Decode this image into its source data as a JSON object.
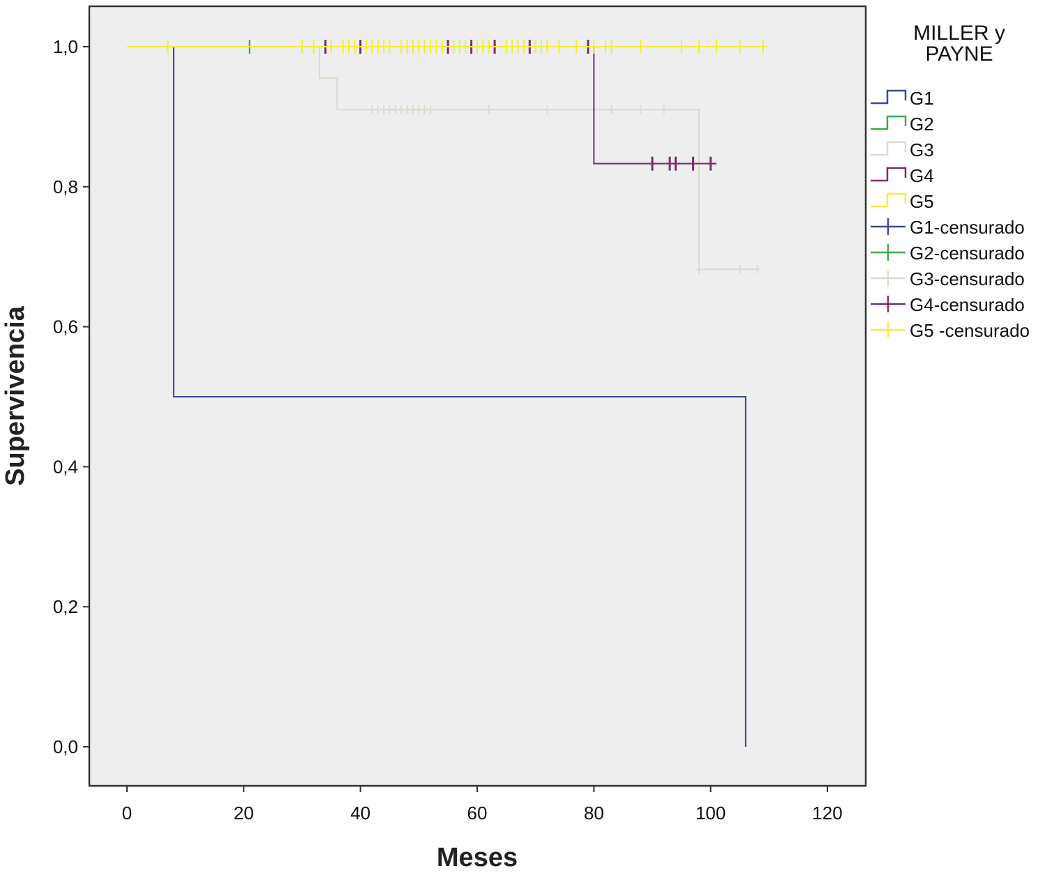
{
  "chart_data": {
    "type": "line",
    "subtype": "kaplan-meier step",
    "xlabel": "Meses",
    "ylabel": "Supervivencia",
    "xlim": [
      0,
      120
    ],
    "ylim": [
      0,
      1
    ],
    "x_ticks": [
      0,
      20,
      40,
      60,
      80,
      100,
      120
    ],
    "y_ticks": [
      "0,0",
      "0,2",
      "0,4",
      "0,6",
      "0,8",
      "1,0"
    ],
    "y_tick_values": [
      0,
      0.2,
      0.4,
      0.6,
      0.8,
      1.0
    ],
    "grid": false,
    "legend_position": "right",
    "legend_title_lines": [
      "MILLER y",
      "PAYNE"
    ],
    "series": [
      {
        "name": "G1",
        "censored_name": "G1-censurado",
        "color": "#3d4a8a",
        "steps": [
          [
            0,
            1.0
          ],
          [
            8,
            0.5
          ],
          [
            106,
            0.0
          ]
        ],
        "censored": []
      },
      {
        "name": "G2",
        "censored_name": "G2-censurado",
        "color": "#3aa755",
        "steps": [
          [
            0,
            1.0
          ]
        ],
        "end": 21,
        "censored": [
          [
            21,
            1.0
          ]
        ]
      },
      {
        "name": "G3",
        "censored_name": "G3-censurado",
        "color": "#d8dccd",
        "steps": [
          [
            0,
            1.0
          ],
          [
            33,
            0.955
          ],
          [
            36,
            0.91
          ],
          [
            98,
            0.682
          ]
        ],
        "end": 108,
        "censored": [
          [
            42,
            0.91
          ],
          [
            43,
            0.91
          ],
          [
            44,
            0.91
          ],
          [
            45,
            0.91
          ],
          [
            46,
            0.91
          ],
          [
            47,
            0.91
          ],
          [
            48,
            0.91
          ],
          [
            49,
            0.91
          ],
          [
            50,
            0.91
          ],
          [
            51,
            0.91
          ],
          [
            52,
            0.91
          ],
          [
            62,
            0.91
          ],
          [
            72,
            0.91
          ],
          [
            83,
            0.91
          ],
          [
            88,
            0.91
          ],
          [
            92,
            0.91
          ],
          [
            98,
            0.682
          ],
          [
            105,
            0.682
          ],
          [
            108,
            0.682
          ]
        ]
      },
      {
        "name": "G4",
        "censored_name": "G4-censurado",
        "color": "#7a2e6a",
        "steps": [
          [
            0,
            1.0
          ],
          [
            80,
            0.833
          ]
        ],
        "end": 101,
        "censored": [
          [
            34,
            1.0
          ],
          [
            40,
            1.0
          ],
          [
            55,
            1.0
          ],
          [
            59,
            1.0
          ],
          [
            63,
            1.0
          ],
          [
            69,
            1.0
          ],
          [
            79,
            1.0
          ],
          [
            90,
            0.833
          ],
          [
            93,
            0.833
          ],
          [
            94,
            0.833
          ],
          [
            97,
            0.833
          ],
          [
            100,
            0.833
          ]
        ]
      },
      {
        "name": "G5",
        "censored_name": "G5 -censurado",
        "color": "#f2ee3a",
        "steps": [
          [
            0,
            1.0
          ]
        ],
        "end": 109,
        "censored": [
          [
            7,
            1.0
          ],
          [
            30,
            1.0
          ],
          [
            32,
            1.0
          ],
          [
            35,
            1.0
          ],
          [
            37,
            1.0
          ],
          [
            38,
            1.0
          ],
          [
            39,
            1.0
          ],
          [
            41,
            1.0
          ],
          [
            42,
            1.0
          ],
          [
            43,
            1.0
          ],
          [
            44,
            1.0
          ],
          [
            45,
            1.0
          ],
          [
            47,
            1.0
          ],
          [
            48,
            1.0
          ],
          [
            49,
            1.0
          ],
          [
            50,
            1.0
          ],
          [
            51,
            1.0
          ],
          [
            52,
            1.0
          ],
          [
            53,
            1.0
          ],
          [
            54,
            1.0
          ],
          [
            56,
            1.0
          ],
          [
            57,
            1.0
          ],
          [
            58,
            1.0
          ],
          [
            60,
            1.0
          ],
          [
            61,
            1.0
          ],
          [
            62,
            1.0
          ],
          [
            65,
            1.0
          ],
          [
            66,
            1.0
          ],
          [
            67,
            1.0
          ],
          [
            68,
            1.0
          ],
          [
            70,
            1.0
          ],
          [
            71,
            1.0
          ],
          [
            72,
            1.0
          ],
          [
            74,
            1.0
          ],
          [
            77,
            1.0
          ],
          [
            80,
            1.0
          ],
          [
            82,
            1.0
          ],
          [
            83,
            1.0
          ],
          [
            88,
            1.0
          ],
          [
            95,
            1.0
          ],
          [
            98,
            1.0
          ],
          [
            101,
            1.0
          ],
          [
            105,
            1.0
          ],
          [
            109,
            1.0
          ]
        ]
      }
    ]
  }
}
